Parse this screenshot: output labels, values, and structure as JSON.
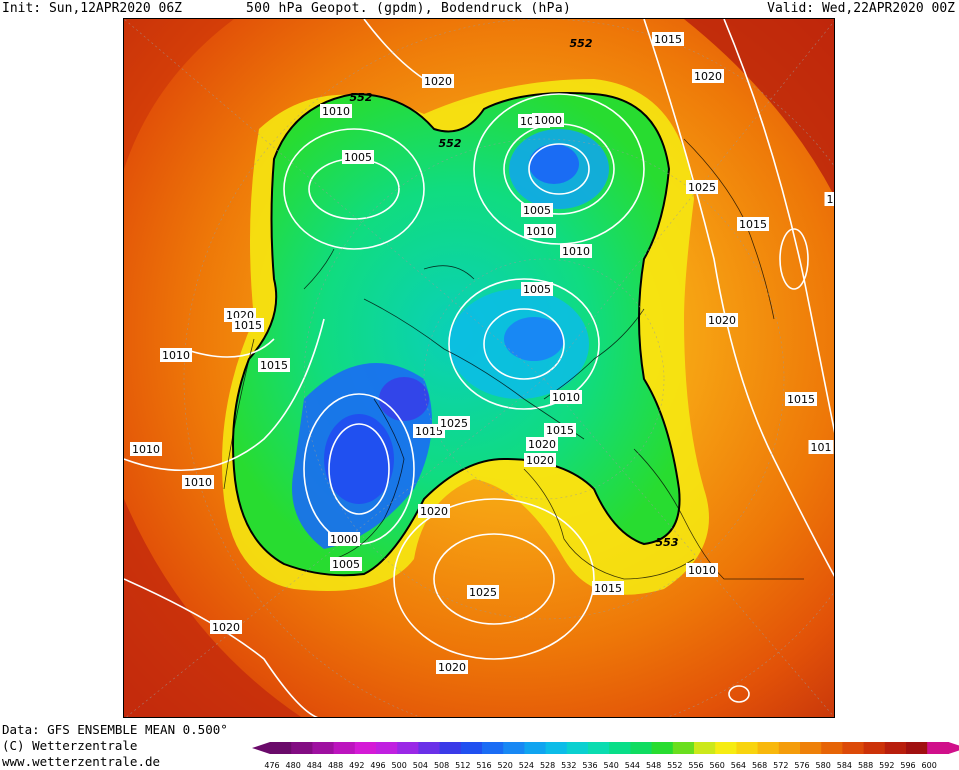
{
  "header": {
    "init": "Init: Sun,12APR2020 06Z",
    "title": "500 hPa Geopot. (gpdm), Bodendruck (hPa)",
    "valid": "Valid: Wed,22APR2020 00Z"
  },
  "footer": {
    "data_source": "Data: GFS ENSEMBLE MEAN 0.500°",
    "copyright": "(C) Wetterzentrale",
    "website": "www.wetterzentrale.de"
  },
  "colorbar": {
    "ticks": [
      "476",
      "480",
      "484",
      "488",
      "492",
      "496",
      "500",
      "504",
      "508",
      "512",
      "516",
      "520",
      "524",
      "528",
      "532",
      "536",
      "540",
      "544",
      "548",
      "552",
      "556",
      "560",
      "564",
      "568",
      "572",
      "576",
      "580",
      "584",
      "588",
      "592",
      "596",
      "600"
    ],
    "colors": [
      "#6a0a6a",
      "#820c82",
      "#9e10a0",
      "#bc14be",
      "#d41ad6",
      "#c020e0",
      "#9a28e6",
      "#6a30e8",
      "#3a3ae8",
      "#2050f0",
      "#1a6cf4",
      "#1888f4",
      "#10a4f0",
      "#0cbce8",
      "#0ad0d0",
      "#0adcb0",
      "#08de88",
      "#10dc60",
      "#28dc30",
      "#6ade1e",
      "#cce81a",
      "#f6ec12",
      "#f8d40e",
      "#f8b80c",
      "#f49c0a",
      "#ee8008",
      "#e66406",
      "#dc4a08",
      "#cc3208",
      "#b81e0c",
      "#a01010",
      "#d0108a"
    ]
  },
  "contour_labels": [
    {
      "text": "552",
      "style": "italic"
    },
    {
      "text": "552",
      "style": "italic"
    },
    {
      "text": "552",
      "style": "italic"
    },
    {
      "text": "553",
      "style": "italic"
    },
    {
      "text": "1010"
    },
    {
      "text": "1015"
    },
    {
      "text": "1020"
    },
    {
      "text": "1020"
    },
    {
      "text": "1010"
    },
    {
      "text": "1005"
    },
    {
      "text": "1000"
    },
    {
      "text": "1005"
    },
    {
      "text": "1010"
    },
    {
      "text": "1010"
    },
    {
      "text": "1025"
    },
    {
      "text": "1015"
    },
    {
      "text": "1020"
    },
    {
      "text": "1015"
    },
    {
      "text": "1005"
    },
    {
      "text": "1010"
    },
    {
      "text": "1015"
    },
    {
      "text": "1020"
    },
    {
      "text": "1010"
    },
    {
      "text": "1020"
    },
    {
      "text": "1015"
    },
    {
      "text": "1010"
    },
    {
      "text": "1015"
    },
    {
      "text": "1010"
    },
    {
      "text": "1015"
    },
    {
      "text": "1025"
    },
    {
      "text": "1020"
    },
    {
      "text": "1000"
    },
    {
      "text": "1005"
    },
    {
      "text": "1020"
    },
    {
      "text": "1025"
    },
    {
      "text": "1015"
    },
    {
      "text": "1010"
    },
    {
      "text": "1020"
    },
    {
      "text": "1020"
    },
    {
      "text": "101"
    },
    {
      "text": "1"
    }
  ]
}
